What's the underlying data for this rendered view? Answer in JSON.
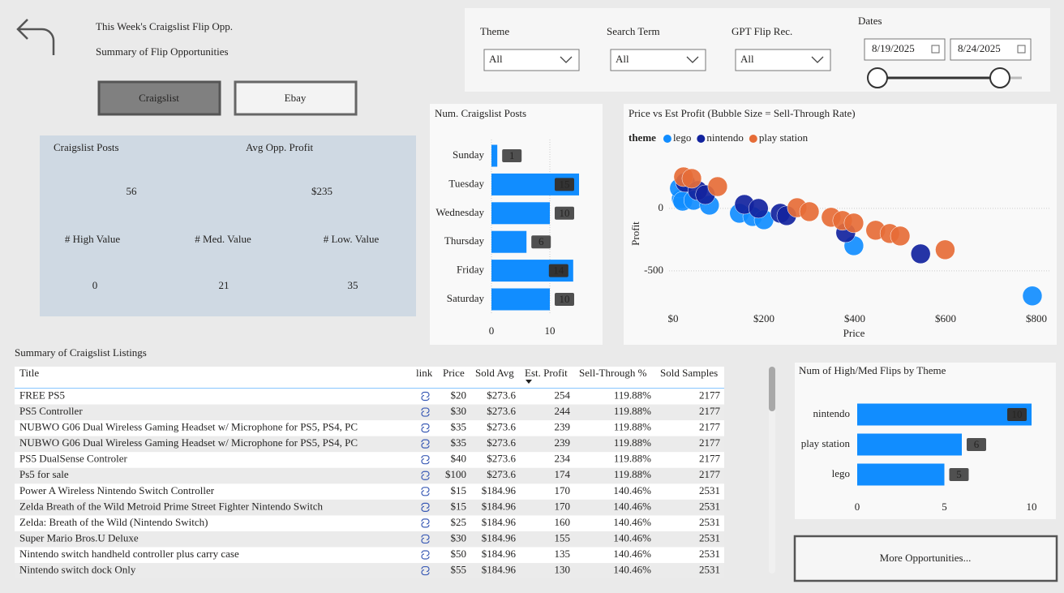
{
  "header": {
    "title": "This Week's Craigslist Flip Opp.",
    "subtitle": "Summary of Flip Opportunities"
  },
  "tabs": [
    "Craigslist",
    "Ebay"
  ],
  "filters": [
    {
      "label": "Theme",
      "value": "All"
    },
    {
      "label": "Search Term",
      "value": "All"
    },
    {
      "label": "GPT Flip Rec.",
      "value": "All"
    }
  ],
  "dates": {
    "label": "Dates",
    "start": "8/19/2025",
    "end": "8/24/2025"
  },
  "kpis": [
    {
      "label": "Craigslist Posts",
      "value": 56
    },
    {
      "label": "Avg Opp. Profit",
      "value": "$235"
    },
    {
      "label": "# High Value",
      "value": 0
    },
    {
      "label": "# Med. Value",
      "value": 21
    },
    {
      "label": "# Low. Value",
      "value": 35
    }
  ],
  "chart_data": [
    {
      "type": "bar",
      "orientation": "horizontal",
      "title": "Num. Craigslist Posts",
      "categories": [
        "Sunday",
        "Tuesday",
        "Wednesday",
        "Thursday",
        "Friday",
        "Saturday"
      ],
      "values": [
        1,
        15,
        10,
        6,
        14,
        10
      ],
      "color": "#118DFF",
      "xlim": [
        0,
        15
      ],
      "xticks": [
        0,
        10
      ],
      "grid": true
    },
    {
      "type": "scatter",
      "title": "Price vs Est Profit (Bubble Size = Sell-Through Rate)",
      "xlabel": "Price",
      "ylabel": "Profit",
      "legend_title": "theme",
      "xlim": [
        0,
        800
      ],
      "xticks": [
        {
          "value": 0,
          "label": "$0"
        },
        {
          "value": 200,
          "label": "$200"
        },
        {
          "value": 400,
          "label": "$400"
        },
        {
          "value": 600,
          "label": "$600"
        },
        {
          "value": 800,
          "label": "$800"
        }
      ],
      "ylim": [
        -800,
        400
      ],
      "yticks": [
        0,
        -500
      ],
      "grid": true,
      "series": [
        {
          "name": "lego",
          "color": "#118DFF",
          "x": [
            18,
            14,
            21,
            45,
            80,
            146,
            175,
            200,
            398,
            791
          ],
          "values": [
            78,
            162,
            58,
            65,
            26,
            -39,
            -65,
            -91,
            -299,
            -701
          ]
        },
        {
          "name": "nintendo",
          "color": "#12239E",
          "x": [
            27,
            54,
            71,
            157,
            188,
            236,
            250,
            380,
            545
          ],
          "values": [
            208,
            143,
            110,
            32,
            0,
            -39,
            -58,
            -195,
            -364
          ]
        },
        {
          "name": "play station",
          "color": "#E66C37",
          "x": [
            23,
            41,
            98,
            273,
            300,
            348,
            373,
            398,
            446,
            477,
            500,
            599
          ],
          "values": [
            253,
            240,
            175,
            6,
            -26,
            -71,
            -97,
            -117,
            -175,
            -201,
            -221,
            -331
          ]
        }
      ]
    },
    {
      "type": "bar",
      "orientation": "horizontal",
      "title": "Num of High/Med Flips by Theme",
      "categories": [
        "nintendo",
        "play station",
        "lego"
      ],
      "values": [
        10,
        6,
        5
      ],
      "color": "#118DFF",
      "xlim": [
        0,
        10
      ],
      "xticks": [
        0,
        5,
        10
      ],
      "grid": false
    }
  ],
  "table": {
    "title": "Summary of Craigslist Listings",
    "columns": [
      "Title",
      "link",
      "Price",
      "Sold Avg",
      "Est. Profit",
      "Sell-Through %",
      "Sold Samples"
    ],
    "rows": [
      [
        "FREE PS5",
        "$20",
        "$273.6",
        254,
        "119.88%",
        2177
      ],
      [
        "PS5 Controller",
        "$30",
        "$273.6",
        244,
        "119.88%",
        2177
      ],
      [
        "NUBWO G06 Dual Wireless Gaming Headset w/ Microphone for PS5, PS4, PC",
        "$35",
        "$273.6",
        239,
        "119.88%",
        2177
      ],
      [
        "NUBWO G06 Dual Wireless Gaming Headset w/ Microphone for PS5, PS4, PC",
        "$35",
        "$273.6",
        239,
        "119.88%",
        2177
      ],
      [
        "PS5 DualSense Controler",
        "$40",
        "$273.6",
        234,
        "119.88%",
        2177
      ],
      [
        "Ps5 for sale",
        "$100",
        "$273.6",
        174,
        "119.88%",
        2177
      ],
      [
        "Power A Wireless Nintendo Switch Controller",
        "$15",
        "$184.96",
        170,
        "140.46%",
        2531
      ],
      [
        "Zelda Breath of the Wild Metroid Prime Street Fighter Nintendo Switch",
        "$15",
        "$184.96",
        170,
        "140.46%",
        2531
      ],
      [
        "Zelda: Breath of the Wild (Nintendo Switch)",
        "$25",
        "$184.96",
        160,
        "140.46%",
        2531
      ],
      [
        "Super Mario Bros.U Deluxe",
        "$30",
        "$184.96",
        155,
        "140.46%",
        2531
      ],
      [
        "Nintendo switch handheld controller plus carry case",
        "$50",
        "$184.96",
        135,
        "140.46%",
        2531
      ],
      [
        "Nintendo switch dock Only",
        "$55",
        "$184.96",
        130,
        "140.46%",
        2531
      ]
    ]
  },
  "button": "More Opportunities..."
}
